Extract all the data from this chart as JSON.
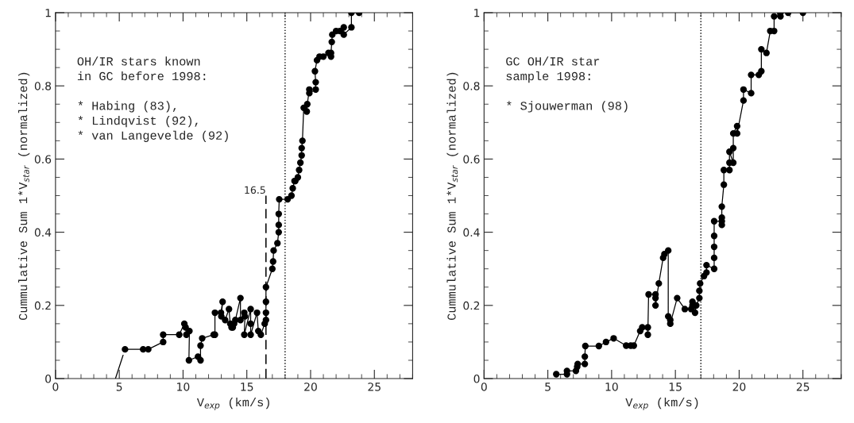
{
  "chart_data": [
    {
      "type": "line",
      "xlabel": "V$_{exp}$ (km/s)",
      "ylabel": "Cummulative Sum 1*V$_{star}$ (normalized)",
      "xlim": [
        0,
        28
      ],
      "ylim": [
        0,
        1
      ],
      "xticks": [
        0,
        5,
        10,
        15,
        20,
        25
      ],
      "yticks": [
        0,
        0.2,
        0.4,
        0.6,
        0.8,
        1
      ],
      "grid": false,
      "series": [
        {
          "color": "#000000",
          "marker": "none",
          "x": [
            4.7,
            5.3
          ],
          "values": [
            0,
            0.064
          ]
        },
        {
          "color": "#000000",
          "marker": "none",
          "line_style": "dashed",
          "x": [
            16.5,
            16.5
          ],
          "values": [
            0,
            0.5
          ]
        },
        {
          "color": "#000000",
          "marker": "circle",
          "x": [
            5.45,
            6.87,
            7.27,
            8.44,
            8.44,
            9.7,
            10.1,
            10.2,
            10.26,
            10.5,
            10.46,
            11.17,
            11.37,
            11.37,
            11.5,
            12.4,
            12.5,
            12.5,
            12.97,
            13.1,
            13.0,
            13.3,
            13.6,
            13.7,
            13.8,
            13.9,
            14.0,
            14.1,
            14.5,
            14.5,
            14.8,
            14.85,
            14.8,
            15.3,
            15.3,
            15.3,
            15.8,
            15.9,
            16.1,
            16.4,
            16.5,
            16.5,
            16.5,
            16.5,
            17.0,
            17.06,
            17.1,
            17.4,
            17.5,
            17.5,
            17.5,
            17.54,
            18.2,
            18.5,
            18.6,
            18.74,
            18.8,
            19.0,
            19.1,
            19.2,
            19.3,
            19.3,
            19.36,
            19.46,
            19.7,
            19.74,
            19.9,
            19.9,
            20.4,
            20.4,
            20.34,
            20.5,
            20.7,
            21.0,
            21.4,
            21.6,
            21.6,
            21.66,
            21.7,
            22.0,
            22.3,
            22.6,
            22.6,
            23.2,
            23.2,
            23.8
          ],
          "values": [
            0.08,
            0.08,
            0.08,
            0.1,
            0.12,
            0.12,
            0.15,
            0.14,
            0.12,
            0.13,
            0.05,
            0.06,
            0.05,
            0.09,
            0.11,
            0.12,
            0.12,
            0.18,
            0.18,
            0.21,
            0.17,
            0.16,
            0.19,
            0.15,
            0.14,
            0.14,
            0.15,
            0.16,
            0.22,
            0.16,
            0.18,
            0.17,
            0.12,
            0.19,
            0.15,
            0.12,
            0.18,
            0.13,
            0.12,
            0.15,
            0.16,
            0.18,
            0.21,
            0.25,
            0.3,
            0.32,
            0.35,
            0.37,
            0.4,
            0.42,
            0.45,
            0.49,
            0.49,
            0.5,
            0.52,
            0.54,
            0.54,
            0.55,
            0.57,
            0.59,
            0.61,
            0.63,
            0.65,
            0.74,
            0.73,
            0.75,
            0.79,
            0.78,
            0.79,
            0.81,
            0.84,
            0.87,
            0.88,
            0.88,
            0.89,
            0.88,
            0.89,
            0.92,
            0.94,
            0.95,
            0.95,
            0.96,
            0.94,
            0.96,
            1.0,
            1.0
          ]
        }
      ],
      "ref_lines": [
        {
          "axis": "x",
          "value": 18,
          "line_style": "dotted",
          "color": "#000000"
        }
      ],
      "annotations": [
        "OH/IR stars known\nin GC before 1998:\n\n* Habing (83),\n* Lindqvist (92),\n* van Langevelde (92)",
        {
          "text": "16.5",
          "x": 16.5,
          "y": 0.5
        }
      ]
    },
    {
      "type": "line",
      "xlabel": "V$_{exp}$ (km/s)",
      "ylabel": "Cummulative Sum 1*V$_{star}$ (normalized)",
      "xlim": [
        0,
        28
      ],
      "ylim": [
        0,
        1
      ],
      "xticks": [
        0,
        5,
        10,
        15,
        20,
        25
      ],
      "yticks": [
        0,
        0.2,
        0.4,
        0.6,
        0.8,
        1
      ],
      "grid": false,
      "series": [
        {
          "color": "#000000",
          "marker": "circle",
          "x": [
            5.66,
            6.5,
            6.5,
            7.2,
            7.3,
            7.34,
            7.9,
            7.9,
            7.94,
            9.0,
            9.56,
            10.16,
            11.14,
            11.5,
            11.74,
            12.24,
            12.4,
            12.84,
            12.84,
            12.9,
            13.44,
            13.44,
            13.44,
            13.7,
            14.04,
            14.14,
            14.44,
            14.44,
            14.6,
            14.6,
            15.14,
            15.74,
            16.24,
            16.34,
            16.34,
            16.54,
            16.54,
            16.64,
            16.88,
            16.88,
            16.94,
            17.24,
            17.44,
            17.44,
            18.04,
            18.04,
            18.04,
            18.04,
            18.04,
            18.64,
            18.64,
            18.64,
            18.64,
            18.8,
            18.8,
            19.24,
            19.24,
            19.24,
            19.54,
            19.54,
            19.54,
            19.84,
            19.84,
            20.34,
            20.34,
            20.94,
            20.94,
            21.54,
            21.74,
            21.74,
            22.14,
            22.44,
            22.74,
            22.74,
            23.24,
            23.24,
            23.84,
            25.0
          ],
          "values": [
            0.012,
            0.012,
            0.021,
            0.021,
            0.032,
            0.04,
            0.04,
            0.06,
            0.089,
            0.089,
            0.1,
            0.11,
            0.09,
            0.09,
            0.09,
            0.13,
            0.14,
            0.14,
            0.12,
            0.23,
            0.23,
            0.22,
            0.2,
            0.26,
            0.33,
            0.34,
            0.35,
            0.17,
            0.16,
            0.15,
            0.22,
            0.19,
            0.19,
            0.21,
            0.2,
            0.2,
            0.18,
            0.2,
            0.22,
            0.24,
            0.26,
            0.28,
            0.29,
            0.31,
            0.3,
            0.33,
            0.36,
            0.39,
            0.43,
            0.43,
            0.42,
            0.44,
            0.47,
            0.53,
            0.57,
            0.57,
            0.59,
            0.62,
            0.59,
            0.63,
            0.67,
            0.69,
            0.67,
            0.76,
            0.79,
            0.78,
            0.83,
            0.83,
            0.84,
            0.9,
            0.89,
            0.95,
            0.95,
            0.99,
            0.99,
            1.0,
            1.0,
            1.0
          ]
        }
      ],
      "ref_lines": [
        {
          "axis": "x",
          "value": 17,
          "line_style": "dotted",
          "color": "#000000"
        }
      ],
      "annotations": [
        "GC OH/IR star\nsample 1998:\n\n* Sjouwerman (98)"
      ]
    }
  ]
}
